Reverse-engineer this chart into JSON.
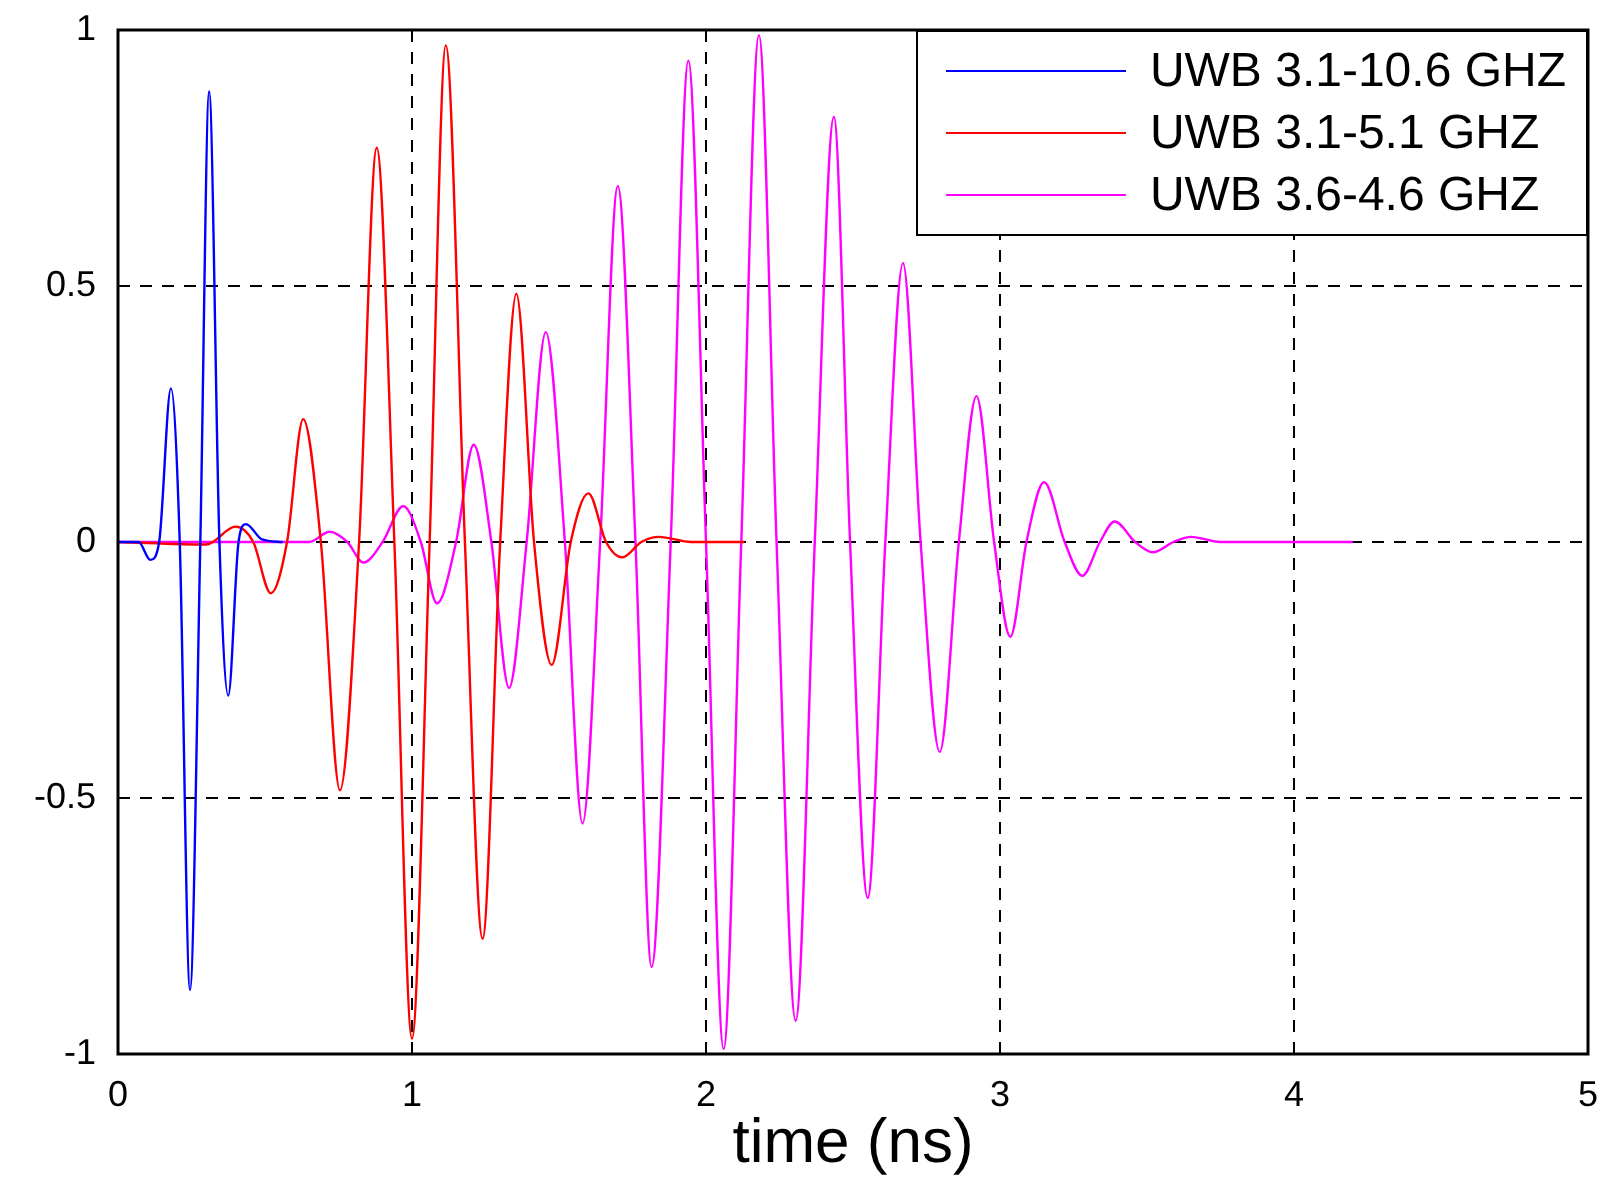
{
  "chart_data": {
    "type": "line",
    "xlabel": "time (ns)",
    "xlim": [
      0,
      5
    ],
    "xticks": [
      0,
      1,
      2,
      3,
      4,
      5
    ],
    "ylim": [
      -1,
      1
    ],
    "yticks": [
      -1,
      -0.5,
      0,
      0.5,
      1
    ],
    "grid": true,
    "legend": "top right",
    "line_style": "solid",
    "marker": "none",
    "series": [
      {
        "name": "UWB 3.1-10.6 GHZ",
        "color": "#0000ff",
        "x": [
          0,
          0.07,
          0.11,
          0.14,
          0.18,
          0.21,
          0.245,
          0.28,
          0.31,
          0.345,
          0.375,
          0.41,
          0.435,
          0.49,
          0.56
        ],
        "values": [
          0,
          0,
          -0.035,
          0,
          0.3,
          0,
          -0.875,
          0,
          0.88,
          0,
          -0.3,
          0,
          0.035,
          0.005,
          0
        ]
      },
      {
        "name": "UWB 3.1-5.1 GHZ",
        "color": "#ff0000",
        "x": [
          0,
          0.3,
          0.4,
          0.46,
          0.52,
          0.575,
          0.63,
          0.69,
          0.755,
          0.82,
          0.88,
          0.94,
          1.0,
          1.06,
          1.115,
          1.18,
          1.24,
          1.3,
          1.355,
          1.415,
          1.475,
          1.54,
          1.6,
          1.66,
          1.715,
          1.78,
          1.84,
          1.95,
          2.13
        ],
        "values": [
          0,
          -0.005,
          0.03,
          0,
          -0.1,
          0,
          0.24,
          0,
          -0.485,
          0,
          0.77,
          0,
          -0.97,
          0,
          0.97,
          0,
          -0.775,
          0,
          0.485,
          0,
          -0.24,
          0,
          0.095,
          0,
          -0.03,
          0,
          0.01,
          0,
          0
        ]
      },
      {
        "name": "UWB 3.6-4.6 GHZ",
        "color": "#ff00ff",
        "x": [
          0,
          0.55,
          0.65,
          0.72,
          0.78,
          0.835,
          0.9,
          0.97,
          1.03,
          1.085,
          1.15,
          1.21,
          1.27,
          1.33,
          1.39,
          1.455,
          1.52,
          1.58,
          1.64,
          1.7,
          1.76,
          1.815,
          1.88,
          1.94,
          2.0,
          2.06,
          2.12,
          2.18,
          2.24,
          2.305,
          2.37,
          2.435,
          2.49,
          2.55,
          2.61,
          2.67,
          2.73,
          2.795,
          2.86,
          2.92,
          2.98,
          3.035,
          3.09,
          3.15,
          3.22,
          3.28,
          3.34,
          3.39,
          3.46,
          3.52,
          3.59,
          3.65,
          3.75,
          4.2
        ],
        "values": [
          0,
          0,
          0,
          0.02,
          0,
          -0.04,
          0,
          0.07,
          0,
          -0.12,
          0,
          0.19,
          0,
          -0.285,
          0,
          0.41,
          0,
          -0.55,
          0,
          0.695,
          0,
          -0.83,
          0,
          0.94,
          0,
          -0.99,
          0,
          0.99,
          0,
          -0.935,
          0,
          0.83,
          0,
          -0.695,
          0,
          0.545,
          0,
          -0.41,
          0,
          0.285,
          0,
          -0.185,
          0,
          0.117,
          0,
          -0.066,
          0,
          0.04,
          0,
          -0.02,
          0,
          0.01,
          0,
          0
        ]
      }
    ]
  }
}
